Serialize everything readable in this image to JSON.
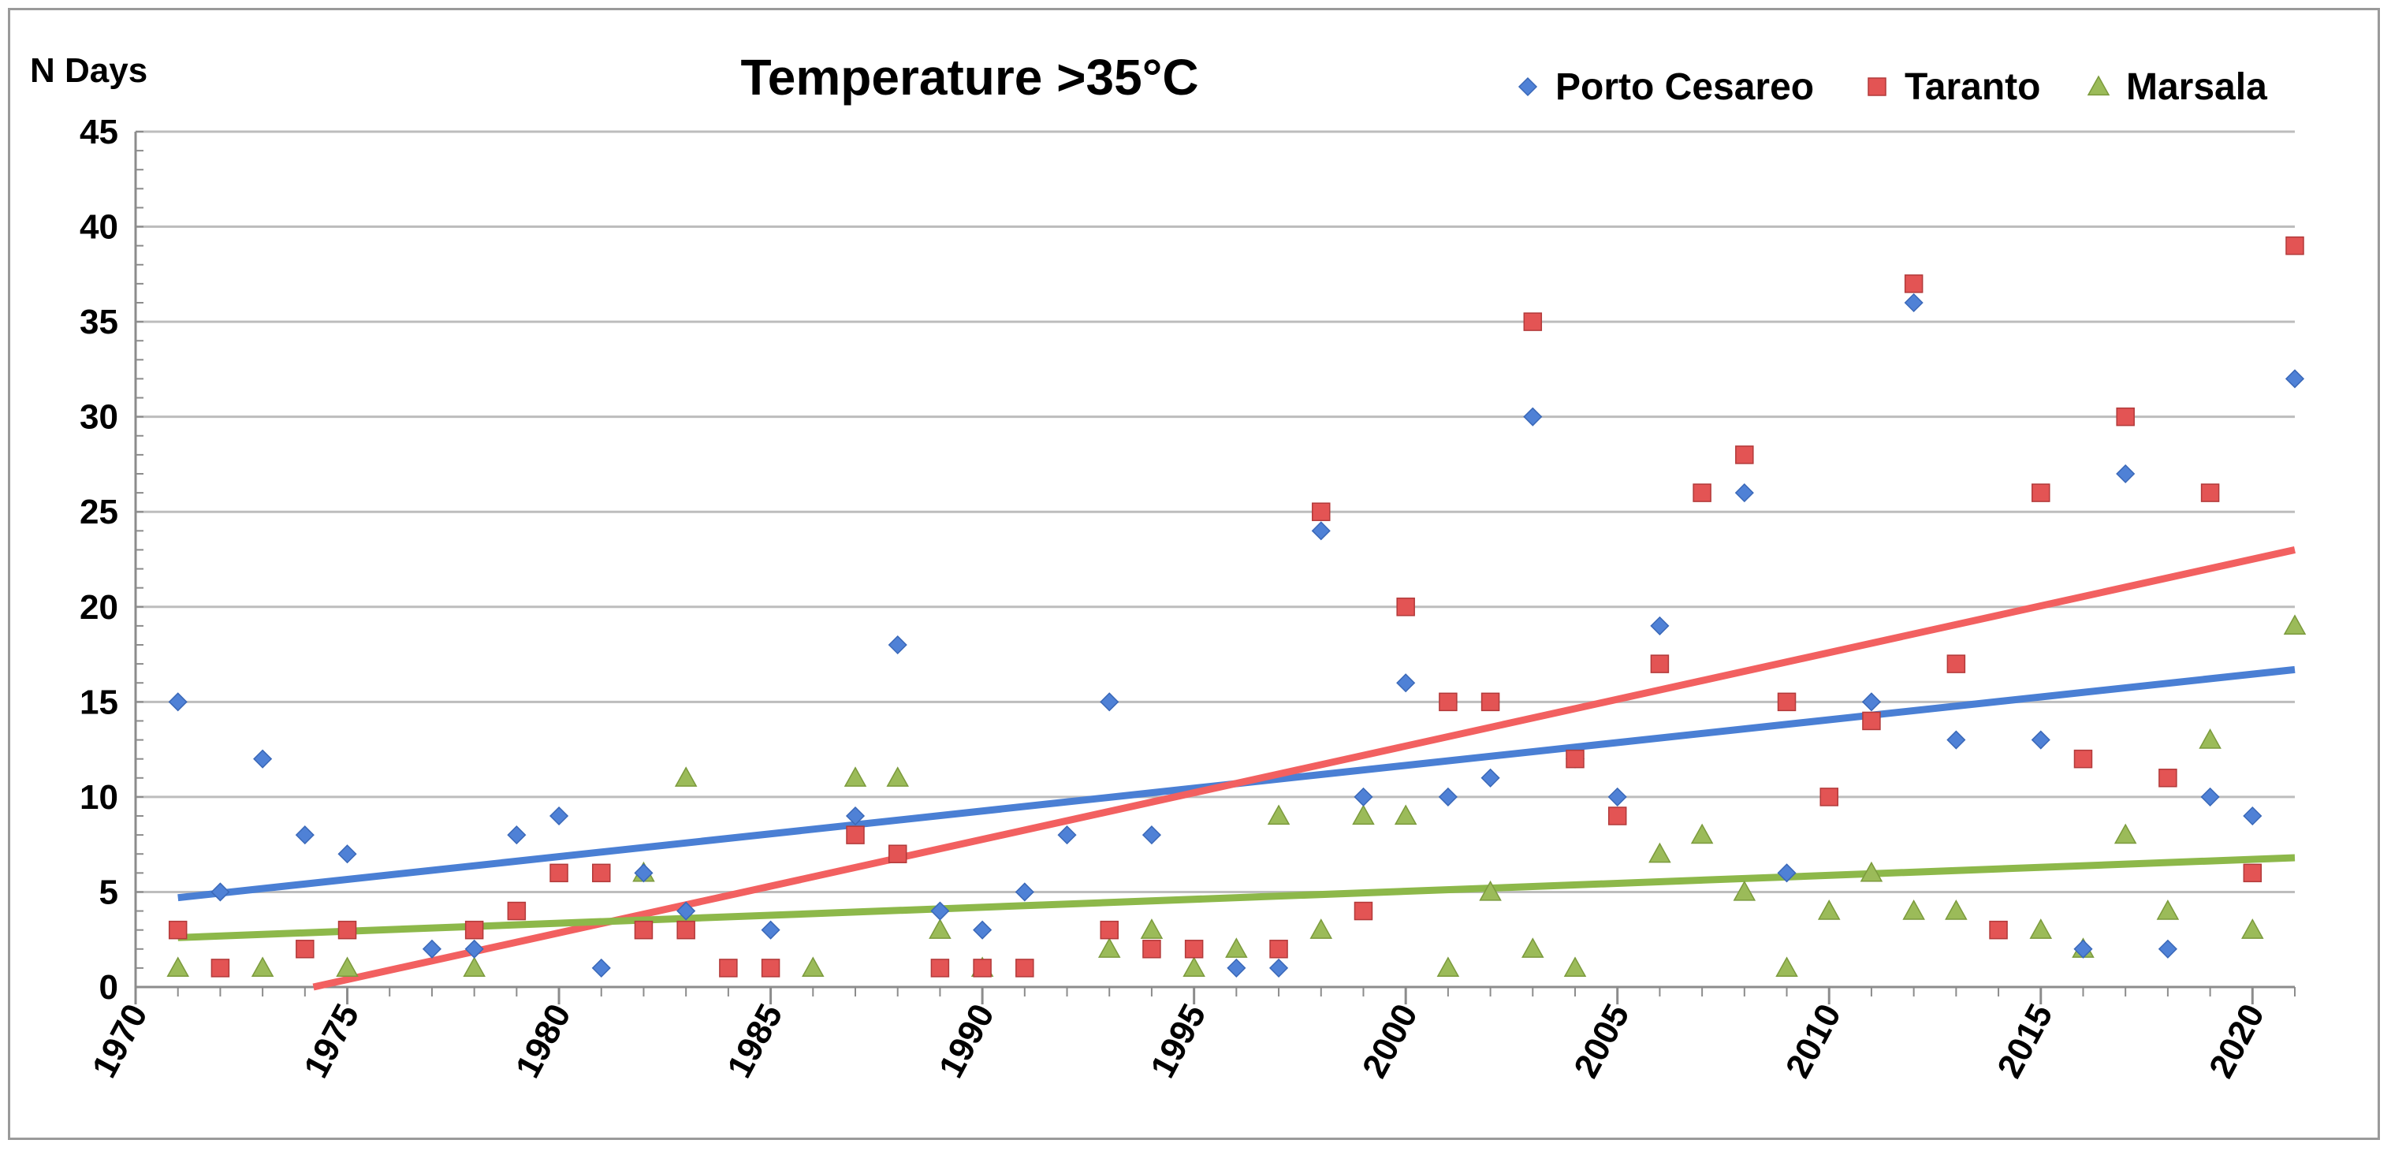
{
  "chart_data": {
    "type": "scatter",
    "title": "Temperature >35°C",
    "ylabel": "N Days",
    "xlabel": "",
    "xlim": [
      1970,
      2021
    ],
    "ylim": [
      0,
      45
    ],
    "x_ticks": [
      "1970",
      "1975",
      "1980",
      "1985",
      "1990",
      "1995",
      "2000",
      "2005",
      "2010",
      "2015",
      "2020"
    ],
    "y_ticks": [
      "0",
      "5",
      "10",
      "15",
      "20",
      "25",
      "30",
      "35",
      "40",
      "45"
    ],
    "grid": "horizontal",
    "legend_position": "top-right",
    "series": [
      {
        "name": "Porto Cesareo",
        "marker": "diamond",
        "color": "#4f81d6",
        "trend_color": "#4a7fd4",
        "trend": [
          [
            1971,
            4.7
          ],
          [
            2021,
            16.7
          ]
        ],
        "points": [
          [
            1971,
            15
          ],
          [
            1972,
            5
          ],
          [
            1973,
            12
          ],
          [
            1974,
            8
          ],
          [
            1975,
            7
          ],
          [
            1977,
            2
          ],
          [
            1978,
            2
          ],
          [
            1979,
            8
          ],
          [
            1980,
            9
          ],
          [
            1981,
            1
          ],
          [
            1982,
            6
          ],
          [
            1983,
            4
          ],
          [
            1985,
            3
          ],
          [
            1987,
            9
          ],
          [
            1988,
            18
          ],
          [
            1989,
            4
          ],
          [
            1990,
            3
          ],
          [
            1991,
            5
          ],
          [
            1992,
            8
          ],
          [
            1993,
            15
          ],
          [
            1994,
            8
          ],
          [
            1996,
            1
          ],
          [
            1997,
            1
          ],
          [
            1998,
            24
          ],
          [
            1999,
            10
          ],
          [
            2000,
            16
          ],
          [
            2001,
            10
          ],
          [
            2002,
            11
          ],
          [
            2003,
            30
          ],
          [
            2004,
            12
          ],
          [
            2005,
            10
          ],
          [
            2006,
            19
          ],
          [
            2008,
            26
          ],
          [
            2009,
            6
          ],
          [
            2011,
            15
          ],
          [
            2012,
            36
          ],
          [
            2013,
            13
          ],
          [
            2015,
            13
          ],
          [
            2016,
            2
          ],
          [
            2017,
            27
          ],
          [
            2018,
            2
          ],
          [
            2019,
            10
          ],
          [
            2020,
            9
          ],
          [
            2021,
            32
          ]
        ]
      },
      {
        "name": "Taranto",
        "marker": "square",
        "color": "#e35454",
        "trend_color": "#f26060",
        "trend": [
          [
            1974.2,
            0
          ],
          [
            2021,
            23
          ]
        ],
        "points": [
          [
            1971,
            3
          ],
          [
            1972,
            1
          ],
          [
            1974,
            2
          ],
          [
            1975,
            3
          ],
          [
            1978,
            3
          ],
          [
            1979,
            4
          ],
          [
            1980,
            6
          ],
          [
            1981,
            6
          ],
          [
            1982,
            3
          ],
          [
            1983,
            3
          ],
          [
            1984,
            1
          ],
          [
            1985,
            1
          ],
          [
            1987,
            8
          ],
          [
            1988,
            7
          ],
          [
            1989,
            1
          ],
          [
            1990,
            1
          ],
          [
            1991,
            1
          ],
          [
            1993,
            3
          ],
          [
            1994,
            2
          ],
          [
            1995,
            2
          ],
          [
            1997,
            2
          ],
          [
            1998,
            25
          ],
          [
            1999,
            4
          ],
          [
            2000,
            20
          ],
          [
            2001,
            15
          ],
          [
            2002,
            15
          ],
          [
            2003,
            35
          ],
          [
            2004,
            12
          ],
          [
            2005,
            9
          ],
          [
            2006,
            17
          ],
          [
            2007,
            26
          ],
          [
            2008,
            28
          ],
          [
            2009,
            15
          ],
          [
            2010,
            10
          ],
          [
            2011,
            14
          ],
          [
            2012,
            37
          ],
          [
            2013,
            17
          ],
          [
            2014,
            3
          ],
          [
            2015,
            26
          ],
          [
            2016,
            12
          ],
          [
            2017,
            30
          ],
          [
            2018,
            11
          ],
          [
            2019,
            26
          ],
          [
            2020,
            6
          ],
          [
            2021,
            39
          ]
        ]
      },
      {
        "name": "Marsala",
        "marker": "triangle",
        "color": "#9bbb59",
        "trend_color": "#8db84a",
        "trend": [
          [
            1971,
            2.6
          ],
          [
            2021,
            6.8
          ]
        ],
        "points": [
          [
            1971,
            1
          ],
          [
            1973,
            1
          ],
          [
            1975,
            1
          ],
          [
            1978,
            1
          ],
          [
            1982,
            6
          ],
          [
            1983,
            11
          ],
          [
            1986,
            1
          ],
          [
            1987,
            11
          ],
          [
            1988,
            11
          ],
          [
            1989,
            3
          ],
          [
            1990,
            1
          ],
          [
            1993,
            2
          ],
          [
            1994,
            3
          ],
          [
            1995,
            1
          ],
          [
            1996,
            2
          ],
          [
            1997,
            9
          ],
          [
            1998,
            3
          ],
          [
            1999,
            9
          ],
          [
            2000,
            9
          ],
          [
            2001,
            1
          ],
          [
            2002,
            5
          ],
          [
            2003,
            2
          ],
          [
            2004,
            1
          ],
          [
            2006,
            7
          ],
          [
            2007,
            8
          ],
          [
            2008,
            5
          ],
          [
            2009,
            1
          ],
          [
            2010,
            4
          ],
          [
            2011,
            6
          ],
          [
            2012,
            4
          ],
          [
            2013,
            4
          ],
          [
            2015,
            3
          ],
          [
            2016,
            2
          ],
          [
            2017,
            8
          ],
          [
            2018,
            4
          ],
          [
            2019,
            13
          ],
          [
            2020,
            3
          ],
          [
            2021,
            19
          ]
        ]
      }
    ]
  }
}
